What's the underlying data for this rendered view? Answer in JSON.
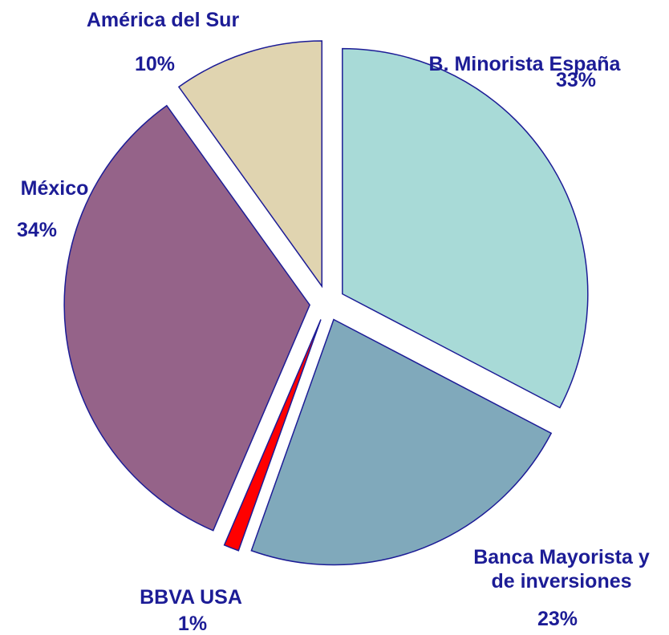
{
  "chart_data": {
    "type": "pie",
    "categories": [
      "B. Minorista España",
      "Banca Mayorista y de inversiones",
      "BBVA USA",
      "México",
      "América del Sur"
    ],
    "values": [
      33,
      23,
      1,
      34,
      10
    ],
    "value_labels": [
      "33%",
      "23%",
      "1%",
      "34%",
      "10%"
    ],
    "colors": [
      "#a8dad7",
      "#80a9bb",
      "#ff0000",
      "#956389",
      "#e0d4b0"
    ]
  }
}
